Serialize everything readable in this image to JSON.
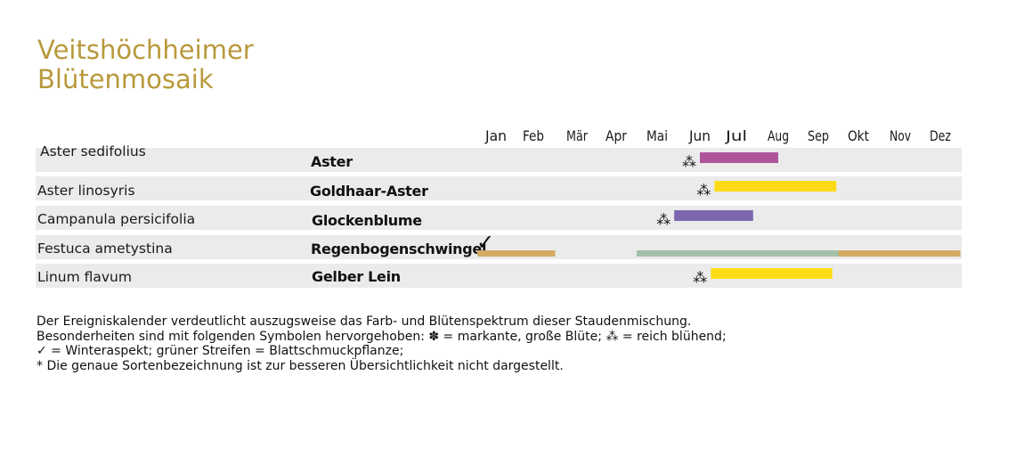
{
  "title": {
    "line1": "Veitshöchheimer",
    "line2": "Blütenmosaik"
  },
  "chart_data": {
    "type": "bar",
    "categories": [
      "Jan",
      "Feb",
      "Mär",
      "Apr",
      "Mai",
      "Jun",
      "Jul",
      "Aug",
      "Sep",
      "Okt",
      "Nov",
      "Dez"
    ],
    "rows": [
      {
        "latin": "Aster sedifolius",
        "common": "Aster",
        "symbol": "⁂",
        "winter": false,
        "bars": [
          {
            "start": 6.0,
            "end": 8.0,
            "color": "#b0549a"
          }
        ]
      },
      {
        "latin": "Aster linosyris",
        "common": "Goldhaar-Aster",
        "symbol": "⁂",
        "winter": false,
        "bars": [
          {
            "start": 6.4,
            "end": 9.45,
            "color": "#fddc17"
          }
        ]
      },
      {
        "latin": "Campanula persicifolia",
        "common": "Glockenblume",
        "symbol": "⁂",
        "winter": false,
        "bars": [
          {
            "start": 5.4,
            "end": 7.4,
            "color": "#7c67ae"
          }
        ]
      },
      {
        "latin": "Festuca ametystina",
        "common": "Regenbogenschwingel",
        "symbol": "",
        "winter": true,
        "winter_symbol": "✓",
        "bars": [
          {
            "start": 0.5,
            "end": 2.5,
            "color": "#d2aa64"
          },
          {
            "start": 4.5,
            "end": 9.5,
            "color": "#a3c0a8"
          },
          {
            "start": 9.5,
            "end": 12.5,
            "color": "#d2aa64"
          }
        ]
      },
      {
        "latin": "Linum flavum",
        "common": "Gelber Lein",
        "symbol": "⁂",
        "winter": false,
        "bars": [
          {
            "start": 6.3,
            "end": 9.35,
            "color": "#fddc17"
          }
        ]
      }
    ],
    "row_background": "#ebebec"
  },
  "footnote": {
    "line1": "Der Ereigniskalender verdeutlicht auszugsweise das Farb- und Blütenspektrum dieser Staudenmischung.",
    "line2": "Besonderheiten sind mit folgenden Symbolen hervorgehoben: ✽ = markante, große Blüte; ⁂ = reich blühend;",
    "line3": "✓ = Winteraspekt; grüner Streifen = Blattschmuckpflanze;",
    "line4": "* Die genaue Sortenbezeichnung ist zur besseren Übersichtlichkeit nicht dargestellt."
  }
}
